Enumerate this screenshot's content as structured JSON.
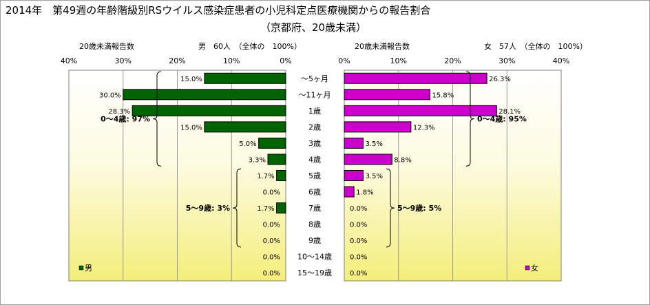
{
  "chart_data": {
    "type": "bar",
    "title": "2014年　第49週の年齢階級別RSウイルス感染症患者の小児科定点医療機関からの報告割合",
    "subtitle": "（京都府、20歳未満）",
    "categories": [
      "～5ヶ月",
      "～11ヶ月",
      "1歳",
      "2歳",
      "3歳",
      "4歳",
      "5歳",
      "6歳",
      "7歳",
      "8歳",
      "9歳",
      "10～14歳",
      "15～19歳"
    ],
    "series": [
      {
        "name": "男",
        "header_label": "20歳未満報告数",
        "header_total": "男　60人　（全体の　100%）",
        "color": "#006400",
        "values": [
          15.0,
          30.0,
          28.3,
          15.0,
          5.0,
          3.3,
          1.7,
          0.0,
          1.7,
          0.0,
          0.0,
          0.0,
          0.0
        ],
        "value_labels": [
          "15.0%",
          "30.0%",
          "28.3%",
          "15.0%",
          "5.0%",
          "3.3%",
          "1.7%",
          "0.0%",
          "1.7%",
          "0.0%",
          "0.0%",
          "0.0%",
          "0.0%"
        ],
        "xlim": [
          0,
          40
        ],
        "direction": "left",
        "tick_labels": [
          "40%",
          "30%",
          "20%",
          "10%",
          "0%"
        ],
        "legend": "男",
        "brackets": [
          {
            "label": "0～4歳: 97%",
            "from": 0,
            "to": 5
          },
          {
            "label": "5～9歳: 3%",
            "from": 6,
            "to": 10
          }
        ]
      },
      {
        "name": "女",
        "header_label": "20歳未満報告数",
        "header_total": "女　57人　（全体の　100%）",
        "color": "#cc00cc",
        "values": [
          26.3,
          15.8,
          28.1,
          12.3,
          3.5,
          8.8,
          3.5,
          1.8,
          0.0,
          0.0,
          0.0,
          0.0,
          0.0
        ],
        "value_labels": [
          "26.3%",
          "15.8%",
          "28.1%",
          "12.3%",
          "3.5%",
          "8.8%",
          "3.5%",
          "1.8%",
          "0.0%",
          "0.0%",
          "0.0%",
          "0.0%",
          "0.0%"
        ],
        "xlim": [
          0,
          40
        ],
        "direction": "right",
        "tick_labels": [
          "0%",
          "10%",
          "20%",
          "30%",
          "40%"
        ],
        "legend": "女",
        "brackets": [
          {
            "label": "0～4歳: 95%",
            "from": 0,
            "to": 5
          },
          {
            "label": "5～9歳: 5%",
            "from": 6,
            "to": 10
          }
        ]
      }
    ],
    "grid": true,
    "legend_position": "bottom-left / bottom-right"
  }
}
